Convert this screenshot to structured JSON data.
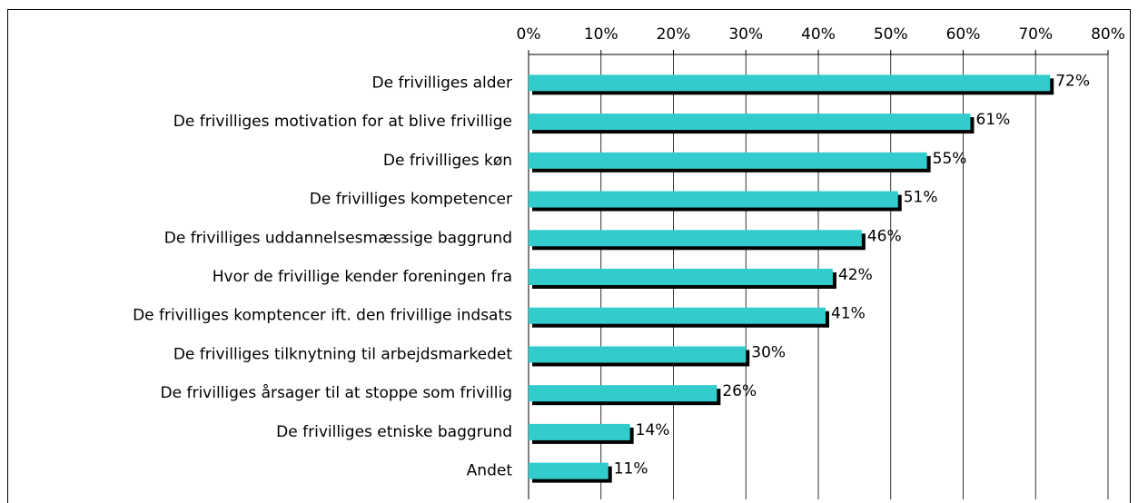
{
  "chart_data": {
    "type": "bar",
    "orientation": "horizontal",
    "categories": [
      "De frivilliges alder",
      "De frivilliges motivation for at blive frivillige",
      "De frivilliges køn",
      "De frivilliges kompetencer",
      "De frivilliges uddannelsesmæssige baggrund",
      "Hvor de frivillige kender foreningen fra",
      "De frivilliges komptencer ift. den frivillige indsats",
      "De frivilliges tilknytning til arbejdsmarkedet",
      "De frivilliges årsager til at stoppe som frivillig",
      "De frivilliges etniske baggrund",
      "Andet"
    ],
    "values": [
      72,
      61,
      55,
      51,
      46,
      42,
      41,
      30,
      26,
      14,
      11
    ],
    "value_labels": [
      "72%",
      "61%",
      "55%",
      "51%",
      "46%",
      "42%",
      "41%",
      "30%",
      "26%",
      "14%",
      "11%"
    ],
    "color": "#33cccc",
    "shadow_color": "#000000",
    "xlim": [
      0,
      80
    ],
    "xticks": [
      {
        "value": 0,
        "label": "0%"
      },
      {
        "value": 10,
        "label": "10%"
      },
      {
        "value": 20,
        "label": "20%"
      },
      {
        "value": 30,
        "label": "30%"
      },
      {
        "value": 40,
        "label": "40%"
      },
      {
        "value": 50,
        "label": "50%"
      },
      {
        "value": 60,
        "label": "60%"
      },
      {
        "value": 70,
        "label": "70%"
      },
      {
        "value": 80,
        "label": "80%"
      }
    ],
    "grid": true
  }
}
